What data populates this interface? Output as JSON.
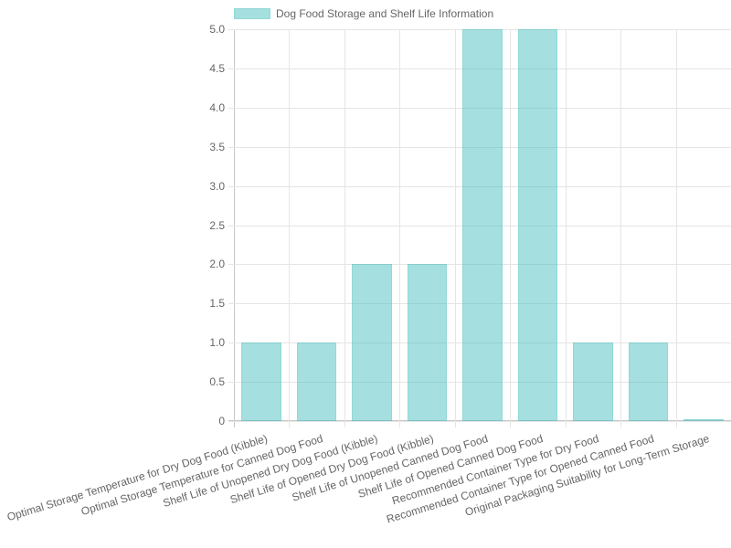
{
  "chart_data": {
    "type": "bar",
    "title": "",
    "legend": [
      {
        "label": "Dog Food Storage and Shelf Life Information",
        "color": "rgba(75,192,192,0.5)"
      }
    ],
    "legend_position": "top",
    "categories": [
      "Optimal Storage Temperature for Dry Dog Food (Kibble)",
      "Optimal Storage Temperature for Canned Dog Food",
      "Shelf Life of Unopened Dry Dog Food (Kibble)",
      "Shelf Life of Opened Dry Dog Food (Kibble)",
      "Shelf Life of Unopened Canned Dog Food",
      "Shelf Life of Opened Canned Dog Food",
      "Recommended Container Type for Dry Food",
      "Recommended Container Type for Opened Canned Food",
      "Original Packaging Suitability for Long-Term Storage"
    ],
    "series": [
      {
        "name": "Dog Food Storage and Shelf Life Information",
        "values": [
          1,
          1,
          2,
          2,
          5,
          5,
          1,
          1,
          0
        ]
      }
    ],
    "xlabel": "",
    "ylabel": "",
    "ylim": [
      0,
      5
    ],
    "yticks": [
      "0",
      "0.5",
      "1.0",
      "1.5",
      "2.0",
      "2.5",
      "3.0",
      "3.5",
      "4.0",
      "4.5",
      "5.0"
    ],
    "grid": true,
    "bar_color": "#4bc0c0"
  }
}
